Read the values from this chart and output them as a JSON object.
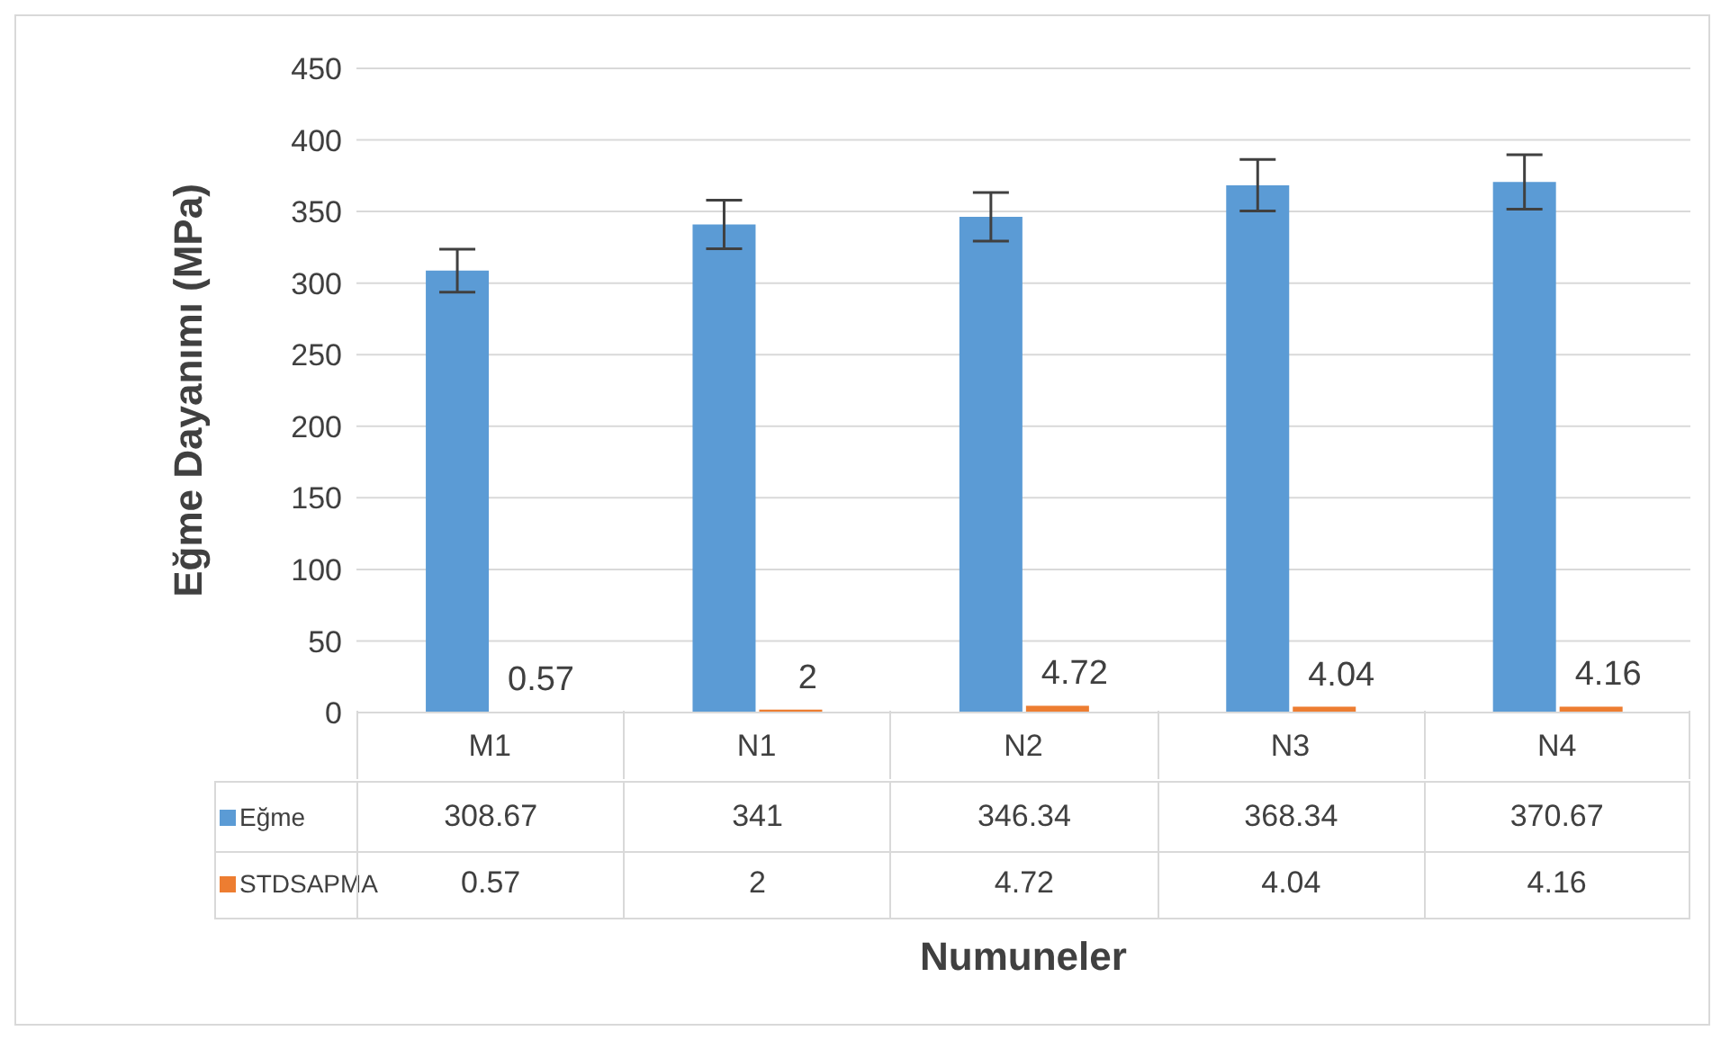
{
  "chart_data": {
    "type": "bar",
    "xlabel": "Numuneler",
    "ylabel": "Eğme Dayanımı (MPa)",
    "categories": [
      "M1",
      "N1",
      "N2",
      "N3",
      "N4"
    ],
    "series": [
      {
        "name": "Eğme",
        "color": "#5b9bd5",
        "values": [
          308.67,
          341,
          346.34,
          368.34,
          370.67
        ],
        "errors": [
          15,
          17,
          17,
          18,
          19
        ]
      },
      {
        "name": "STDSAPMA",
        "color": "#ed7d31",
        "values": [
          0.57,
          2,
          4.72,
          4.04,
          4.16
        ]
      }
    ],
    "annotations": [
      {
        "text": "0.57",
        "x": "M1",
        "y": 0.57
      },
      {
        "text": "2",
        "x": "N1",
        "y": 2
      },
      {
        "text": "4.72",
        "x": "N2",
        "y": 4.72
      },
      {
        "text": "4.04",
        "x": "N3",
        "y": 4.04
      },
      {
        "text": "4.16",
        "x": "N4",
        "y": 4.16
      }
    ],
    "ylim": [
      0,
      450
    ],
    "yticks": [
      0,
      50,
      100,
      150,
      200,
      250,
      300,
      350,
      400,
      450
    ],
    "grid": "y",
    "legend": "bottom",
    "data_labels": true
  }
}
